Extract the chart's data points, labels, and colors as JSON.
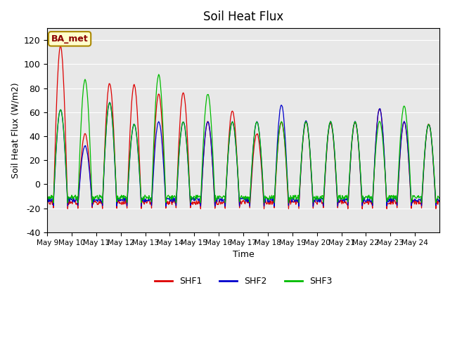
{
  "title": "Soil Heat Flux",
  "ylabel": "Soil Heat Flux (W/m2)",
  "xlabel": "Time",
  "ylim": [
    -40,
    130
  ],
  "yticks": [
    -40,
    -20,
    0,
    20,
    40,
    60,
    80,
    100,
    120
  ],
  "background_color": "#e8e8e8",
  "legend_label": "BA_met",
  "series_colors": [
    "#dd0000",
    "#0000cc",
    "#00bb00"
  ],
  "series_names": [
    "SHF1",
    "SHF2",
    "SHF3"
  ],
  "n_days": 16,
  "points_per_day": 48,
  "xtick_labels": [
    "May 9",
    "May 10",
    "May 11",
    "May 12",
    "May 13",
    "May 14",
    "May 15",
    "May 16",
    "May 17",
    "May 18",
    "May 19",
    "May 20",
    "May 21",
    "May 22",
    "May 23",
    "May 24"
  ],
  "daily_peaks_shf1": [
    115,
    42,
    84,
    83,
    75,
    76,
    52,
    61,
    42,
    52,
    52,
    51,
    52,
    63,
    52,
    50
  ],
  "daily_peaks_shf2": [
    62,
    32,
    68,
    50,
    52,
    52,
    52,
    52,
    52,
    66,
    53,
    52,
    52,
    63,
    52,
    50
  ],
  "daily_peaks_shf3": [
    62,
    87,
    68,
    50,
    91,
    52,
    75,
    52,
    52,
    52,
    52,
    52,
    52,
    52,
    65,
    50
  ],
  "daily_min_shf1": -20,
  "daily_min_shf2": -18,
  "daily_min_shf3": -15,
  "night_value_shf1": -15,
  "night_value_shf2": -13,
  "night_value_shf3": -11
}
